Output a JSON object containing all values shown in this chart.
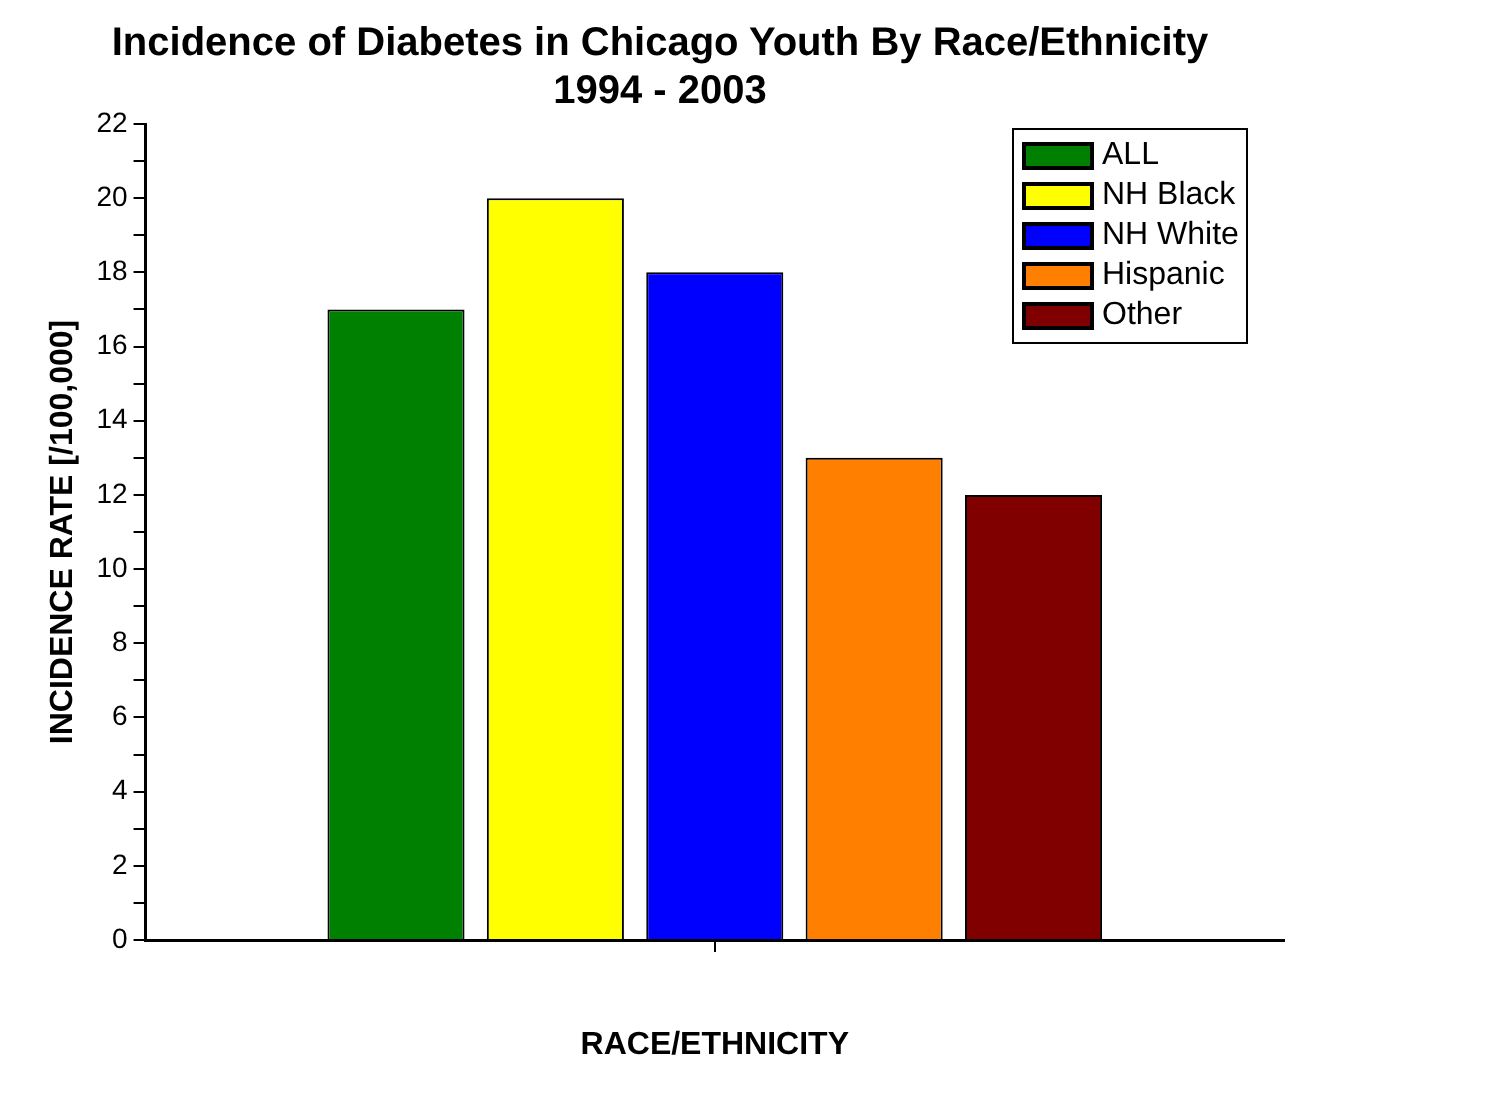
{
  "chart_data": {
    "type": "bar",
    "title": [
      "Incidence of Diabetes in Chicago Youth By Race/Ethnicity",
      "1994 - 2003"
    ],
    "xlabel": "RACE/ETHNICITY",
    "ylabel": "INCIDENCE RATE [/100,000]",
    "categories": [
      null
    ],
    "series": [
      {
        "name": "ALL",
        "color": "#008000",
        "values": [
          17
        ]
      },
      {
        "name": "NH Black",
        "color": "#ffff00",
        "values": [
          20
        ]
      },
      {
        "name": "NH White",
        "color": "#0000ff",
        "values": [
          18
        ]
      },
      {
        "name": "Hispanic",
        "color": "#ff8000",
        "values": [
          13
        ]
      },
      {
        "name": "Other",
        "color": "#800000",
        "values": [
          12
        ]
      }
    ],
    "ylim": [
      0,
      22
    ],
    "yticks": [
      0,
      {
        "value": 1,
        "label": null
      },
      2,
      {
        "value": 3,
        "label": null
      },
      4,
      {
        "value": 5,
        "label": null
      },
      6,
      {
        "value": 7,
        "label": null
      },
      8,
      {
        "value": 9,
        "label": null
      },
      10,
      {
        "value": 11,
        "label": null
      },
      12,
      {
        "value": 13,
        "label": null
      },
      14,
      {
        "value": 15,
        "label": null
      },
      16,
      {
        "value": 17,
        "label": null
      },
      18,
      {
        "value": 19,
        "label": null
      },
      20,
      {
        "value": 21,
        "label": null
      },
      22
    ],
    "grid": false,
    "legend": "top right"
  }
}
